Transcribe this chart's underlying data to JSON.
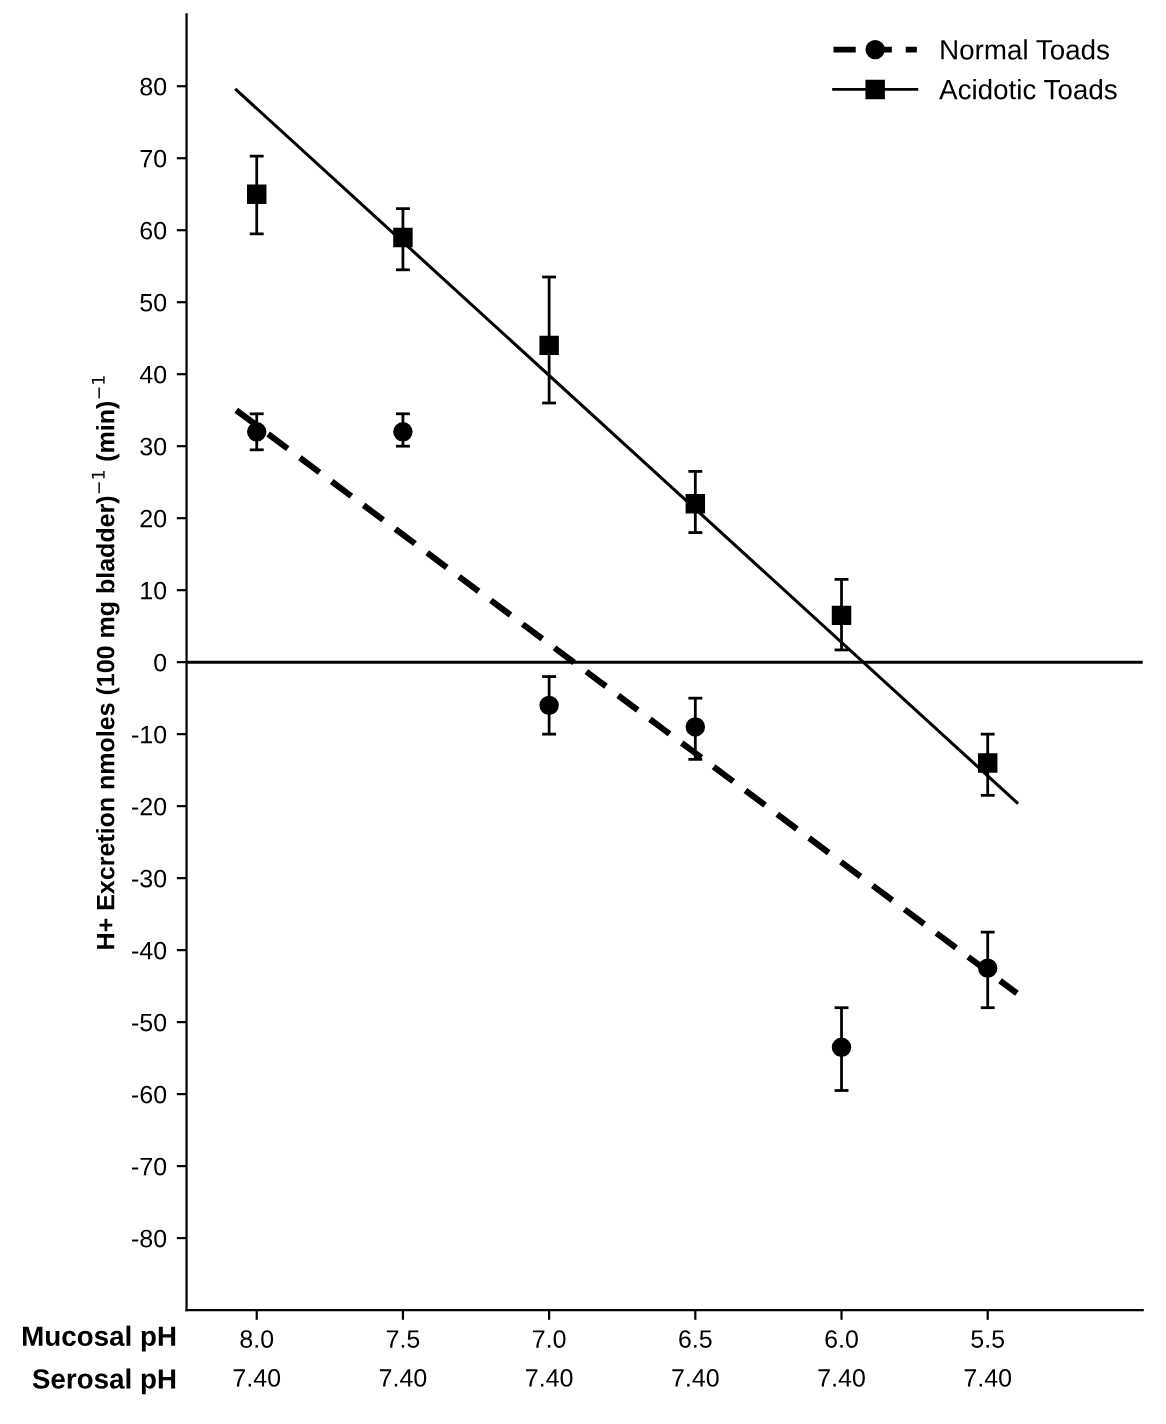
{
  "chart_data": {
    "type": "scatter",
    "ylabel": "H+ Excretion nmoles (100 mg bladder)$^{−1}$ (min)$^{−1}$",
    "xlabel": "Mucosal pH",
    "annotations": [
      "Serosal pH",
      "7.40",
      "7.40",
      "7.40",
      "7.40",
      "7.40",
      "7.40"
    ],
    "xlim": [
      8.24,
      4.97
    ],
    "ylim": [
      -90,
      90
    ],
    "xticks": [
      {
        "value": 8,
        "label": "8.0"
      },
      7.5,
      {
        "value": 7,
        "label": "7.0"
      },
      6.5,
      {
        "value": 6,
        "label": "6.0"
      },
      5.5
    ],
    "yticks": [
      -80,
      -70,
      -60,
      -50,
      -40,
      -30,
      -20,
      -10,
      0,
      10,
      20,
      30,
      40,
      50,
      60,
      70,
      80
    ],
    "legend": "top right",
    "grid": false,
    "ref_lines": [
      {
        "axis": "y",
        "value": 0,
        "color": "#000000"
      }
    ],
    "series": [
      {
        "name": "Normal Toads",
        "color": "#000000",
        "marker": "circle",
        "line_style": "dashed",
        "x": [
          8.0,
          7.5,
          7.0,
          6.5,
          6.0,
          5.5
        ],
        "values": [
          32,
          32,
          -6,
          -9,
          -53.5,
          -42.5
        ],
        "errors": [
          [
            29.5,
            34.5
          ],
          [
            30,
            34.5
          ],
          [
            -10,
            -2
          ],
          [
            -13.5,
            -5
          ],
          [
            -59.5,
            -48
          ],
          [
            -48,
            -37.5
          ]
        ]
      },
      {
        "name": "Acidotic Toads",
        "color": "#000000",
        "marker": "square",
        "line_style": "solid",
        "x": [
          8.0,
          7.5,
          7.0,
          6.5,
          6.0,
          5.5
        ],
        "values": [
          65,
          59,
          44,
          22,
          6.5,
          -14
        ],
        "errors": [
          [
            59.5,
            70.3
          ],
          [
            54.5,
            63
          ],
          [
            36,
            53.5
          ],
          [
            18,
            26.5
          ],
          [
            1.7,
            11.5
          ],
          [
            -18.5,
            -10
          ]
        ]
      },
      {
        "type": "line",
        "color": "#000000",
        "line_style": "dashed",
        "x": [
          8.07,
          5.4
        ],
        "values": [
          35,
          -46
        ]
      },
      {
        "type": "line",
        "color": "#000000",
        "line_style": "solid",
        "x": [
          8.07,
          5.4
        ],
        "values": [
          79.5,
          -19.5
        ]
      }
    ]
  }
}
